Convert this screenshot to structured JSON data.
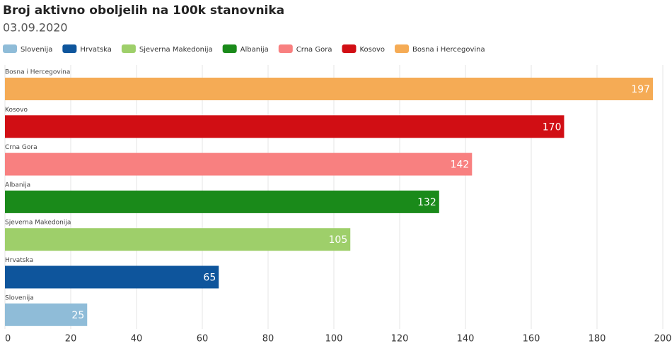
{
  "chart_data": {
    "type": "bar",
    "orientation": "horizontal",
    "title": "Broj aktivno oboljelih na 100k stanovnika",
    "subtitle": "03.09.2020",
    "series": [
      {
        "name": "Slovenija",
        "color": "#8fbcd8",
        "values": [
          25
        ]
      },
      {
        "name": "Hrvatska",
        "color": "#0e559c",
        "values": [
          65
        ]
      },
      {
        "name": "Sjeverna Makedonija",
        "color": "#9ecf6a",
        "values": [
          105
        ]
      },
      {
        "name": "Albanija",
        "color": "#1a8a1a",
        "values": [
          132
        ]
      },
      {
        "name": "Crna Gora",
        "color": "#f88080",
        "values": [
          142
        ]
      },
      {
        "name": "Kosovo",
        "color": "#d10e14",
        "values": [
          170
        ]
      },
      {
        "name": "Bosna i Hercegovina",
        "color": "#f5ab55",
        "values": [
          197
        ]
      }
    ],
    "xlim": [
      0,
      200
    ],
    "xticks": [
      0,
      20,
      40,
      60,
      80,
      100,
      120,
      140,
      160,
      180,
      200
    ],
    "grid": true
  }
}
